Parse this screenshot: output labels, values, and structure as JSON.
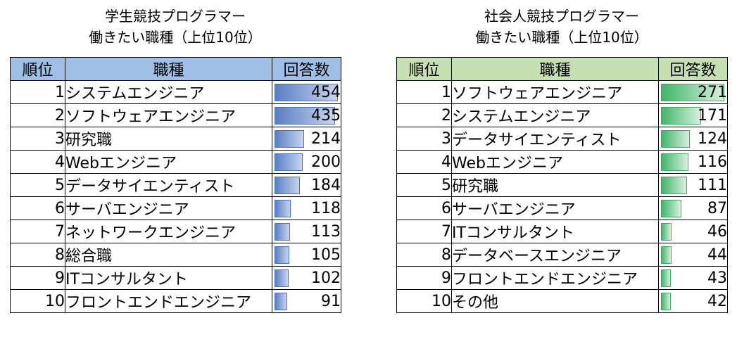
{
  "chart_data": [
    {
      "type": "table",
      "title_line1": "学生競技プログラマー",
      "title_line2": "働きたい職種（上位10位）",
      "headers": [
        "順位",
        "職種",
        "回答数"
      ],
      "max_value": 454,
      "bar_color": "#5b7ec4",
      "header_color": "#9fbfe6",
      "rows": [
        {
          "rank": "1",
          "job": "システムエンジニア",
          "count": 454
        },
        {
          "rank": "2",
          "job": "ソフトウェアエンジニア",
          "count": 435
        },
        {
          "rank": "3",
          "job": "研究職",
          "count": 214
        },
        {
          "rank": "4",
          "job": "Webエンジニア",
          "count": 200
        },
        {
          "rank": "5",
          "job": "データサイエンティスト",
          "count": 184
        },
        {
          "rank": "6",
          "job": "サーバエンジニア",
          "count": 118
        },
        {
          "rank": "7",
          "job": "ネットワークエンジニア",
          "count": 113
        },
        {
          "rank": "8",
          "job": "総合職",
          "count": 105
        },
        {
          "rank": "9",
          "job": "ITコンサルタント",
          "count": 102
        },
        {
          "rank": "10",
          "job": "フロントエンドエンジニア",
          "count": 91
        }
      ]
    },
    {
      "type": "table",
      "title_line1": "社会人競技プログラマー",
      "title_line2": "働きたい職種（上位10位）",
      "headers": [
        "順位",
        "職種",
        "回答数"
      ],
      "max_value": 271,
      "bar_color": "#3fb56a",
      "header_color": "#c5e0b3",
      "rows": [
        {
          "rank": "1",
          "job": "ソフトウェアエンジニア",
          "count": 271
        },
        {
          "rank": "2",
          "job": "システムエンジニア",
          "count": 171
        },
        {
          "rank": "3",
          "job": "データサイエンティスト",
          "count": 124
        },
        {
          "rank": "4",
          "job": "Webエンジニア",
          "count": 116
        },
        {
          "rank": "5",
          "job": "研究職",
          "count": 111
        },
        {
          "rank": "6",
          "job": "サーバエンジニア",
          "count": 87
        },
        {
          "rank": "7",
          "job": "ITコンサルタント",
          "count": 46
        },
        {
          "rank": "8",
          "job": "データベースエンジニア",
          "count": 44
        },
        {
          "rank": "9",
          "job": "フロントエンドエンジニア",
          "count": 43
        },
        {
          "rank": "10",
          "job": "その他",
          "count": 42
        }
      ]
    }
  ]
}
